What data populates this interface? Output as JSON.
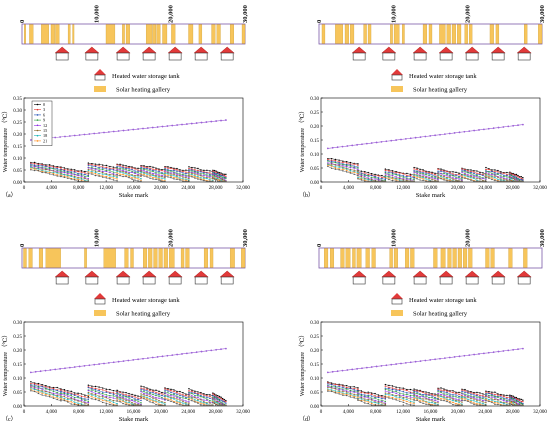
{
  "legend": {
    "tank": "Heated water storage tank",
    "gallery": "Solar heating gallery"
  },
  "strip_ticks": [
    "0",
    "10,000",
    "20,000",
    "30,000"
  ],
  "colors": {
    "gallery": "#f7c55b",
    "tank_roof": "#e23a3a",
    "upper_series": "#9b5fd6",
    "series": [
      "#000000",
      "#e3342f",
      "#1f4fb4",
      "#2e9e3e",
      "#8a2be2",
      "#8b6b2e",
      "#18b4b8",
      "#ff8c1a",
      "#555555"
    ]
  },
  "panels": [
    {
      "id": "a",
      "label": "（a）",
      "galleries": [
        [
          300,
          500
        ],
        [
          1000,
          1500
        ],
        [
          2600,
          3600
        ],
        [
          3900,
          4400
        ],
        [
          4500,
          5000
        ],
        [
          6200,
          6500
        ],
        [
          6800,
          7000
        ],
        [
          11300,
          12500
        ],
        [
          13500,
          13800
        ],
        [
          14000,
          14500
        ],
        [
          16700,
          17500
        ],
        [
          17600,
          18000
        ],
        [
          18100,
          18600
        ],
        [
          18900,
          19500
        ],
        [
          20100,
          20600
        ],
        [
          22400,
          23000
        ],
        [
          23800,
          24200
        ],
        [
          25500,
          26000
        ],
        [
          26200,
          26700
        ],
        [
          28000,
          28500
        ],
        [
          29600,
          30000
        ]
      ],
      "tanks": [
        5400,
        9400,
        13600,
        17100,
        20600,
        24100,
        27600
      ]
    },
    {
      "id": "b",
      "label": "（b）",
      "galleries": [
        [
          400,
          800
        ],
        [
          2200,
          3200
        ],
        [
          3500,
          4000
        ],
        [
          4200,
          4700
        ],
        [
          6000,
          6400
        ],
        [
          6600,
          7000
        ],
        [
          9600,
          9900
        ],
        [
          10100,
          10800
        ],
        [
          11200,
          11500
        ],
        [
          14000,
          14500
        ],
        [
          14800,
          15200
        ],
        [
          16200,
          17000
        ],
        [
          17200,
          17700
        ],
        [
          17900,
          18400
        ],
        [
          18600,
          19100
        ],
        [
          19600,
          20000
        ],
        [
          20200,
          20600
        ],
        [
          23000,
          23500
        ],
        [
          23800,
          24200
        ],
        [
          27600,
          28000
        ],
        [
          29500,
          30000
        ]
      ],
      "tanks": [
        5400,
        9400,
        13600,
        17100,
        20600,
        24100,
        27600
      ]
    },
    {
      "id": "c",
      "label": "（c）",
      "galleries": [
        [
          200,
          600
        ],
        [
          900,
          1400
        ],
        [
          2300,
          2800
        ],
        [
          3200,
          5200
        ],
        [
          8400,
          8700
        ],
        [
          11000,
          12600
        ],
        [
          13800,
          14300
        ],
        [
          14600,
          15000
        ],
        [
          16300,
          16800
        ],
        [
          17000,
          17500
        ],
        [
          17700,
          18200
        ],
        [
          18400,
          18900
        ],
        [
          19100,
          19600
        ],
        [
          19800,
          20500
        ],
        [
          21400,
          21800
        ],
        [
          22000,
          22500
        ],
        [
          24500,
          25000
        ],
        [
          25300,
          25700
        ],
        [
          28000,
          28600
        ],
        [
          29500,
          30000
        ]
      ],
      "tanks": [
        5400,
        9400,
        13600,
        17100,
        20600,
        24100,
        27600
      ]
    },
    {
      "id": "d",
      "label": "（d）",
      "galleries": [
        [
          700,
          1200
        ],
        [
          1500,
          2000
        ],
        [
          2900,
          3400
        ],
        [
          3600,
          4200
        ],
        [
          4500,
          4900
        ],
        [
          5100,
          5700
        ],
        [
          6300,
          6800
        ],
        [
          7100,
          7600
        ],
        [
          9500,
          9900
        ],
        [
          10100,
          10600
        ],
        [
          11600,
          12100
        ],
        [
          12300,
          12800
        ],
        [
          15400,
          15900
        ],
        [
          16400,
          17000
        ],
        [
          17300,
          17800
        ],
        [
          18000,
          18500
        ],
        [
          18700,
          19200
        ],
        [
          19400,
          19900
        ],
        [
          20100,
          20600
        ],
        [
          22400,
          22900
        ],
        [
          23100,
          23600
        ],
        [
          25500,
          26000
        ],
        [
          27500,
          28000
        ]
      ],
      "tanks": [
        5400,
        9400,
        13600,
        17100,
        20600,
        24100,
        27600
      ]
    }
  ],
  "chart_data": [
    {
      "type": "line",
      "panel": "a",
      "xlabel": "Stake mark",
      "ylabel": "Water temperature （℃）",
      "xlim": [
        0,
        32000
      ],
      "ylim": [
        0,
        0.35
      ],
      "xticks": [
        "0",
        "4,000",
        "8,000",
        "12,000",
        "16,000",
        "20,000",
        "24,000",
        "28,000",
        "32,000"
      ],
      "yticks": [
        "0.00",
        "0.05",
        "0.10",
        "0.15",
        "0.20",
        "0.25",
        "0.30",
        "0.35"
      ],
      "legend": [
        "0",
        "3",
        "6",
        "9",
        "12",
        "15",
        "18",
        "21"
      ],
      "upper_line": {
        "x": [
          1000,
          29500
        ],
        "y": [
          0.175,
          0.258
        ]
      },
      "lower_segments": [
        [
          1000,
          5400
        ],
        [
          5400,
          9400
        ],
        [
          9400,
          13600
        ],
        [
          13600,
          17100
        ],
        [
          17100,
          20600
        ],
        [
          20600,
          24100
        ],
        [
          24100,
          27600
        ],
        [
          27600,
          29500
        ]
      ],
      "lower_start": [
        0.082,
        0.06,
        0.08,
        0.075,
        0.07,
        0.065,
        0.062,
        0.05
      ],
      "lower_drop": 0.025
    },
    {
      "type": "line",
      "panel": "b",
      "xlabel": "Stake mark",
      "ylabel": "Water temperature （℃）",
      "xlim": [
        0,
        32000
      ],
      "ylim": [
        0,
        0.3
      ],
      "xticks": [
        "0",
        "4,000",
        "8,000",
        "12,000",
        "16,000",
        "20,000",
        "24,000",
        "28,000",
        "32,000"
      ],
      "yticks": [
        "0.00",
        "0.05",
        "0.10",
        "0.15",
        "0.20",
        "0.25",
        "0.30"
      ],
      "upper_line": {
        "x": [
          1000,
          29500
        ],
        "y": [
          0.12,
          0.205
        ]
      },
      "lower_segments": [
        [
          1000,
          5400
        ],
        [
          5400,
          9400
        ],
        [
          9400,
          13600
        ],
        [
          13600,
          17100
        ],
        [
          17100,
          20600
        ],
        [
          20600,
          24100
        ],
        [
          24100,
          27600
        ],
        [
          27600,
          29500
        ]
      ],
      "lower_start": [
        0.085,
        0.04,
        0.045,
        0.05,
        0.048,
        0.05,
        0.05,
        0.035
      ],
      "lower_drop": 0.025
    },
    {
      "type": "line",
      "panel": "c",
      "xlabel": "Stake mark",
      "ylabel": "Water temperature （℃）",
      "xlim": [
        0,
        32000
      ],
      "ylim": [
        0,
        0.3
      ],
      "xticks": [
        "0",
        "4,000",
        "8,000",
        "12,000",
        "16,000",
        "20,000",
        "24,000",
        "28,000",
        "32,000"
      ],
      "yticks": [
        "0.00",
        "0.05",
        "0.10",
        "0.15",
        "0.20",
        "0.25",
        "0.30"
      ],
      "upper_line": {
        "x": [
          1000,
          29500
        ],
        "y": [
          0.12,
          0.205
        ]
      },
      "lower_segments": [
        [
          1000,
          5400
        ],
        [
          5400,
          9400
        ],
        [
          9400,
          13600
        ],
        [
          13600,
          17100
        ],
        [
          17100,
          20600
        ],
        [
          20600,
          24100
        ],
        [
          24100,
          27600
        ],
        [
          27600,
          29500
        ]
      ],
      "lower_start": [
        0.085,
        0.06,
        0.075,
        0.055,
        0.07,
        0.065,
        0.06,
        0.045
      ],
      "lower_drop": 0.03
    },
    {
      "type": "line",
      "panel": "d",
      "xlabel": "Stake mark",
      "ylabel": "Water temperature （℃）",
      "xlim": [
        0,
        32000
      ],
      "ylim": [
        0,
        0.3
      ],
      "xticks": [
        "0",
        "4,000",
        "8,000",
        "12,000",
        "16,000",
        "20,000",
        "24,000",
        "28,000",
        "32,000"
      ],
      "yticks": [
        "0.00",
        "0.05",
        "0.10",
        "0.15",
        "0.20",
        "0.25",
        "0.30"
      ],
      "upper_line": {
        "x": [
          1000,
          29500
        ],
        "y": [
          0.12,
          0.205
        ]
      },
      "lower_segments": [
        [
          1000,
          5400
        ],
        [
          5400,
          9400
        ],
        [
          9400,
          13600
        ],
        [
          13600,
          17100
        ],
        [
          17100,
          20600
        ],
        [
          20600,
          24100
        ],
        [
          24100,
          27600
        ],
        [
          27600,
          29500
        ]
      ],
      "lower_start": [
        0.085,
        0.055,
        0.075,
        0.06,
        0.065,
        0.06,
        0.055,
        0.04
      ],
      "lower_drop": 0.025
    }
  ]
}
